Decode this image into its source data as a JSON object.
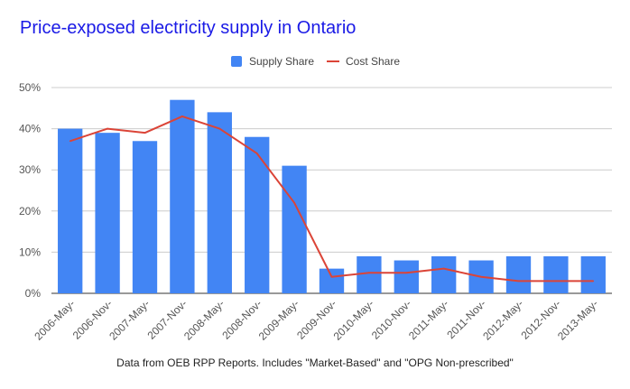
{
  "chart_data": {
    "type": "bar",
    "title": "Price-exposed electricity supply in Ontario",
    "footnote": "Data from OEB RPP Reports. Includes \"Market-Based\" and \"OPG Non-prescribed\"",
    "categories": [
      "2006-May-",
      "2006-Nov-",
      "2007-May-",
      "2007-Nov-",
      "2008-May-",
      "2008-Nov-",
      "2009-May-",
      "2009-Nov-",
      "2010-May-",
      "2010-Nov-",
      "2011-May-",
      "2011-Nov-",
      "2012-May-",
      "2012-Nov-",
      "2013-May-"
    ],
    "series": [
      {
        "name": "Supply Share",
        "type": "bar",
        "color": "#4285f4",
        "values": [
          40,
          39,
          37,
          47,
          44,
          38,
          31,
          6,
          9,
          8,
          9,
          8,
          9,
          9,
          9
        ]
      },
      {
        "name": "Cost Share",
        "type": "line",
        "color": "#db4437",
        "values": [
          37,
          40,
          39,
          43,
          40,
          34,
          22,
          4,
          5,
          5,
          6,
          4,
          3,
          3,
          3
        ]
      }
    ],
    "ylim": [
      0,
      50
    ],
    "yticks": [
      0,
      10,
      20,
      30,
      40,
      50
    ],
    "ytick_labels": [
      "0%",
      "10%",
      "20%",
      "30%",
      "40%",
      "50%"
    ],
    "legend_position": "top-center",
    "grid": true
  }
}
